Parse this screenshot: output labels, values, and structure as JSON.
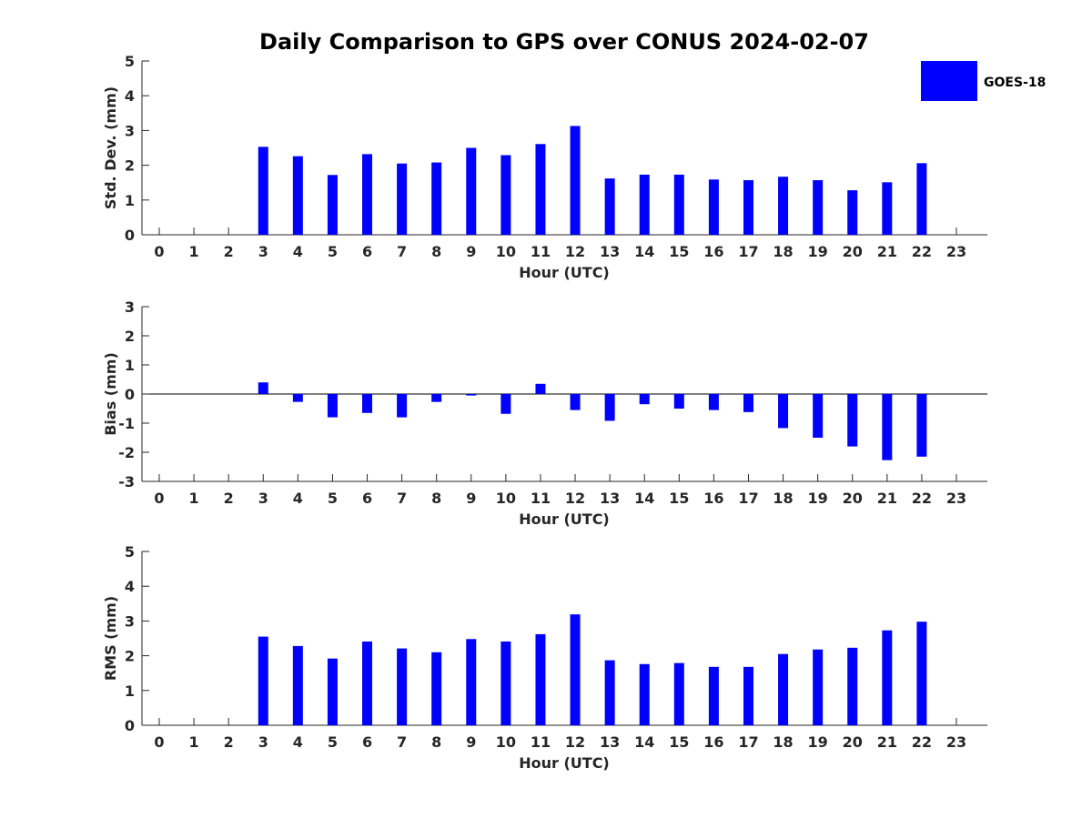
{
  "title": "Daily Comparison to GPS over CONUS 2024-02-07",
  "legend": {
    "label": "GOES-18",
    "color": "#0000ff",
    "placement": "top-right"
  },
  "chart_data": [
    {
      "type": "bar",
      "ylabel": "Std. Dev. (mm)",
      "xlabel": "Hour (UTC)",
      "ylim": [
        0,
        5
      ],
      "yticks": [
        0,
        1,
        2,
        3,
        4,
        5
      ],
      "categories": [
        "0",
        "1",
        "2",
        "3",
        "4",
        "5",
        "6",
        "7",
        "8",
        "9",
        "10",
        "11",
        "12",
        "13",
        "14",
        "15",
        "16",
        "17",
        "18",
        "19",
        "20",
        "21",
        "22",
        "23"
      ],
      "series": [
        {
          "name": "GOES-18",
          "values": [
            null,
            null,
            null,
            2.53,
            2.26,
            1.72,
            2.32,
            2.05,
            2.08,
            2.5,
            2.29,
            2.61,
            3.13,
            1.62,
            1.73,
            1.73,
            1.59,
            1.57,
            1.67,
            1.57,
            1.28,
            1.51,
            2.06,
            null
          ]
        }
      ]
    },
    {
      "type": "bar",
      "ylabel": "Bias (mm)",
      "xlabel": "Hour (UTC)",
      "ylim": [
        -3,
        3
      ],
      "yticks": [
        -3,
        -2,
        -1,
        0,
        1,
        2,
        3
      ],
      "zero_line": true,
      "categories": [
        "0",
        "1",
        "2",
        "3",
        "4",
        "5",
        "6",
        "7",
        "8",
        "9",
        "10",
        "11",
        "12",
        "13",
        "14",
        "15",
        "16",
        "17",
        "18",
        "19",
        "20",
        "21",
        "22",
        "23"
      ],
      "series": [
        {
          "name": "GOES-18",
          "values": [
            null,
            null,
            null,
            0.4,
            -0.27,
            -0.8,
            -0.65,
            -0.8,
            -0.27,
            -0.05,
            -0.68,
            0.35,
            -0.55,
            -0.92,
            -0.35,
            -0.5,
            -0.55,
            -0.62,
            -1.17,
            -1.5,
            -1.8,
            -2.27,
            -2.15,
            null
          ]
        }
      ]
    },
    {
      "type": "bar",
      "ylabel": "RMS (mm)",
      "xlabel": "Hour (UTC)",
      "ylim": [
        0,
        5
      ],
      "yticks": [
        0,
        1,
        2,
        3,
        4,
        5
      ],
      "categories": [
        "0",
        "1",
        "2",
        "3",
        "4",
        "5",
        "6",
        "7",
        "8",
        "9",
        "10",
        "11",
        "12",
        "13",
        "14",
        "15",
        "16",
        "17",
        "18",
        "19",
        "20",
        "21",
        "22",
        "23"
      ],
      "series": [
        {
          "name": "GOES-18",
          "values": [
            null,
            null,
            null,
            2.55,
            2.28,
            1.92,
            2.41,
            2.21,
            2.1,
            2.48,
            2.41,
            2.62,
            3.19,
            1.87,
            1.76,
            1.79,
            1.68,
            1.68,
            2.05,
            2.18,
            2.23,
            2.73,
            2.98,
            null
          ]
        }
      ]
    }
  ]
}
